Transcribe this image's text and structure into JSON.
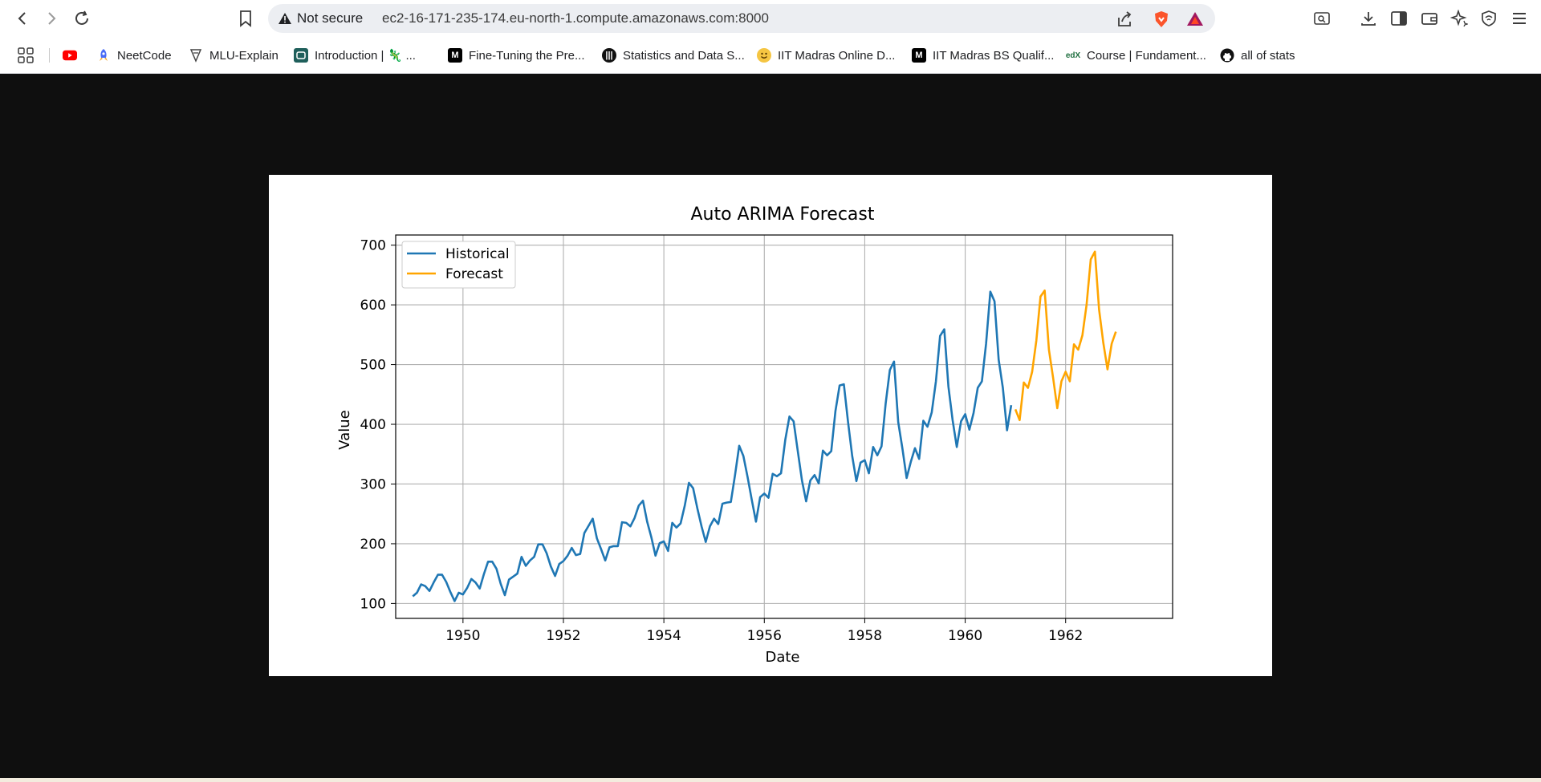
{
  "browser": {
    "security_label": "Not secure",
    "url": "ec2-16-171-235-174.eu-north-1.compute.amazonaws.com:8000",
    "icons": [
      "back-icon",
      "forward-icon",
      "reload-icon",
      "bookmark-icon",
      "warning-icon",
      "share-icon",
      "brave-shield-icon",
      "brave-rewards-icon",
      "search-tab-icon",
      "download-icon",
      "sidebar-icon",
      "wallet-icon",
      "leo-icon",
      "vpn-icon",
      "menu-icon"
    ]
  },
  "bookmarks": [
    {
      "label": "",
      "icon": "apps-grid-icon"
    },
    {
      "label": "",
      "icon": "youtube-icon"
    },
    {
      "label": "NeetCode",
      "icon": "rocket-icon"
    },
    {
      "label": "MLU-Explain",
      "icon": "mlu-icon"
    },
    {
      "label": "Introduction | 🦎 ...",
      "icon": "site-icon"
    },
    {
      "label": "Fine-Tuning the Pre...",
      "icon": "medium-icon"
    },
    {
      "label": "Statistics and Data S...",
      "icon": "circle-logo-icon"
    },
    {
      "label": "IIT Madras Online D...",
      "icon": "emoji-icon"
    },
    {
      "label": "IIT Madras BS Qualif...",
      "icon": "medium-icon"
    },
    {
      "label": "Course | Fundament...",
      "icon": "course-icon"
    },
    {
      "label": "all of stats",
      "icon": "github-icon"
    }
  ],
  "chart_data": {
    "type": "line",
    "title": "Auto ARIMA Forecast",
    "xlabel": "Date",
    "ylabel": "Value",
    "xlim": [
      1948.66,
      1964.13
    ],
    "ylim": [
      75,
      717
    ],
    "xticks": [
      1950,
      1952,
      1954,
      1956,
      1958,
      1960,
      1962
    ],
    "yticks": [
      100,
      200,
      300,
      400,
      500,
      600,
      700
    ],
    "grid": true,
    "legend": "upper left",
    "series": [
      {
        "name": "Historical",
        "color": "#1f77b4",
        "x_start": 1949.0,
        "x_step": 0.0833333,
        "values": [
          112,
          118,
          132,
          129,
          121,
          135,
          148,
          148,
          136,
          119,
          104,
          118,
          115,
          126,
          141,
          135,
          125,
          149,
          170,
          170,
          158,
          133,
          114,
          140,
          145,
          150,
          178,
          163,
          172,
          178,
          199,
          199,
          184,
          162,
          146,
          166,
          171,
          180,
          193,
          181,
          183,
          218,
          230,
          242,
          209,
          191,
          172,
          194,
          196,
          196,
          236,
          235,
          229,
          243,
          264,
          272,
          237,
          211,
          180,
          201,
          204,
          188,
          235,
          227,
          234,
          264,
          302,
          293,
          259,
          229,
          203,
          229,
          242,
          233,
          267,
          269,
          270,
          315,
          364,
          347,
          312,
          274,
          237,
          278,
          284,
          277,
          317,
          313,
          318,
          374,
          413,
          405,
          355,
          306,
          271,
          306,
          315,
          301,
          356,
          348,
          355,
          422,
          465,
          467,
          404,
          347,
          305,
          336,
          340,
          318,
          362,
          348,
          363,
          435,
          491,
          505,
          404,
          359,
          310,
          337,
          360,
          342,
          406,
          396,
          420,
          472,
          548,
          559,
          463,
          407,
          362,
          405,
          417,
          391,
          419,
          461,
          472,
          535,
          622,
          606,
          508,
          461,
          390,
          432
        ]
      },
      {
        "name": "Forecast",
        "color": "#ffa500",
        "x_start": 1961.0,
        "x_step": 0.0833333,
        "values": [
          425,
          407,
          470,
          461,
          488,
          540,
          614,
          624,
          525,
          478,
          427,
          472,
          488,
          472,
          534,
          525,
          549,
          600,
          676,
          689,
          592,
          537,
          492,
          535,
          555
        ]
      }
    ]
  }
}
